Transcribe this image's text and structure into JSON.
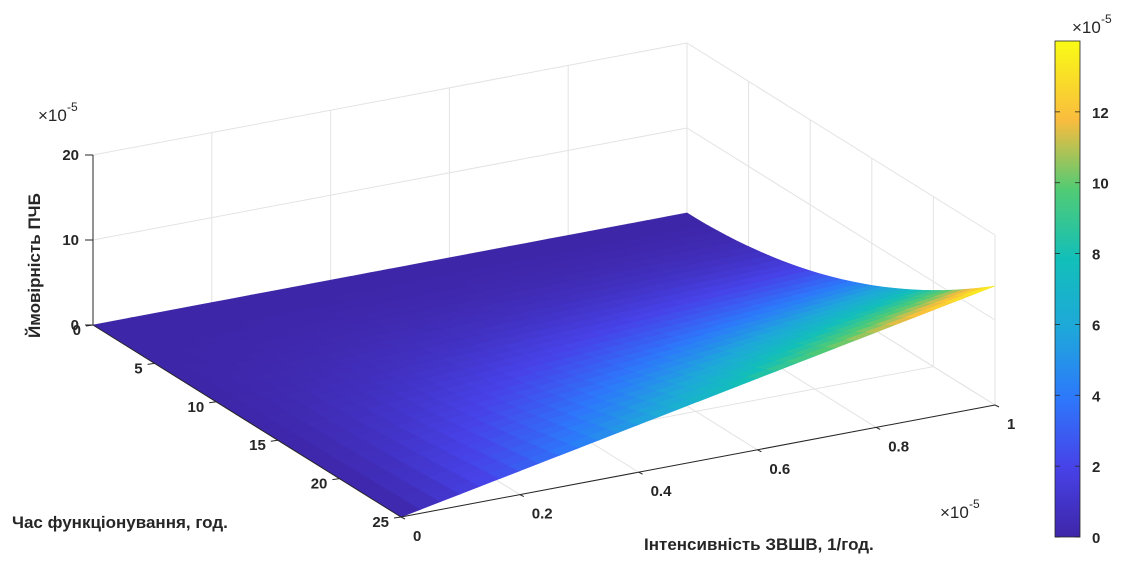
{
  "chart_data": {
    "type": "surface",
    "title": "",
    "xlabel": "Інтенсивність ЗВШВ, 1/год.",
    "ylabel": "Час функціонування, год.",
    "zlabel": "Ймовірність ПЧБ",
    "x_exponent_label": "×10",
    "x_exponent_power": "-5",
    "z_exponent_label": "×10",
    "z_exponent_power": "-5",
    "colorbar_exponent_label": "×10",
    "colorbar_exponent_power": "-5",
    "xlim": [
      0,
      1e-05
    ],
    "ylim": [
      0,
      25
    ],
    "zlim": [
      0,
      0.0002
    ],
    "x_ticks": [
      "0",
      "0.2",
      "0.4",
      "0.6",
      "0.8",
      "1"
    ],
    "y_ticks": [
      "0",
      "5",
      "10",
      "15",
      "20",
      "25"
    ],
    "z_ticks": [
      "0",
      "10",
      "20"
    ],
    "colorbar_ticks": [
      "0",
      "2",
      "4",
      "6",
      "8",
      "10",
      "12"
    ],
    "colorbar_limits": [
      0,
      0.00014
    ],
    "colormap": "parula",
    "grid": true,
    "surface_z_corners": {
      "x0_y0": 0,
      "x1_y0": 0,
      "x0_y25": 0,
      "x1_y25": 0.00014
    }
  }
}
